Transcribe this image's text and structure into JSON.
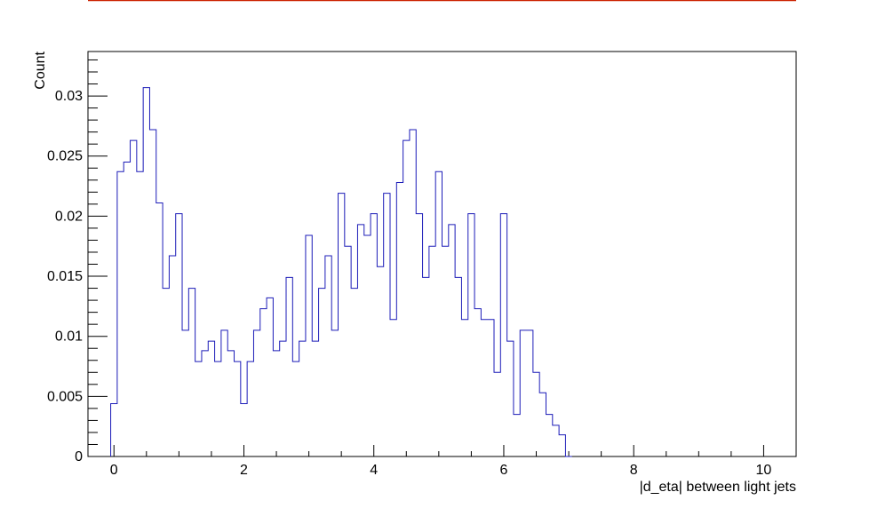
{
  "chart_data": {
    "type": "histogram",
    "xlabel": "|d_eta| between light jets",
    "ylabel": "Count",
    "xlim": [
      -0.4,
      10.5
    ],
    "ylim": [
      0,
      0.0337
    ],
    "bin_width": 0.1,
    "x_start": -0.05,
    "xticks": [
      "0",
      "2",
      "4",
      "6",
      "8",
      "10"
    ],
    "yticks": [
      "0",
      "0.005",
      "0.01",
      "0.015",
      "0.02",
      "0.025",
      "0.03"
    ],
    "values": [
      0.0044,
      0.0237,
      0.0245,
      0.0263,
      0.0237,
      0.0307,
      0.0272,
      0.0211,
      0.014,
      0.0167,
      0.0202,
      0.0105,
      0.014,
      0.0079,
      0.0088,
      0.0096,
      0.0079,
      0.0105,
      0.0088,
      0.0079,
      0.0044,
      0.0079,
      0.0105,
      0.0123,
      0.0132,
      0.0088,
      0.0096,
      0.0149,
      0.0079,
      0.0096,
      0.0184,
      0.0096,
      0.014,
      0.0167,
      0.0105,
      0.0219,
      0.0175,
      0.014,
      0.0193,
      0.0184,
      0.0202,
      0.0158,
      0.0219,
      0.0114,
      0.0228,
      0.0263,
      0.0272,
      0.0202,
      0.0149,
      0.0175,
      0.0237,
      0.0175,
      0.0193,
      0.0149,
      0.0114,
      0.0202,
      0.0123,
      0.0114,
      0.0114,
      0.007,
      0.0202,
      0.0096,
      0.0035,
      0.0105,
      0.0105,
      0.007,
      0.0053,
      0.0035,
      0.0026,
      0.0018,
      0.0
    ],
    "line_color": "#1c1cb8",
    "top_line_color": "#cc2200"
  }
}
